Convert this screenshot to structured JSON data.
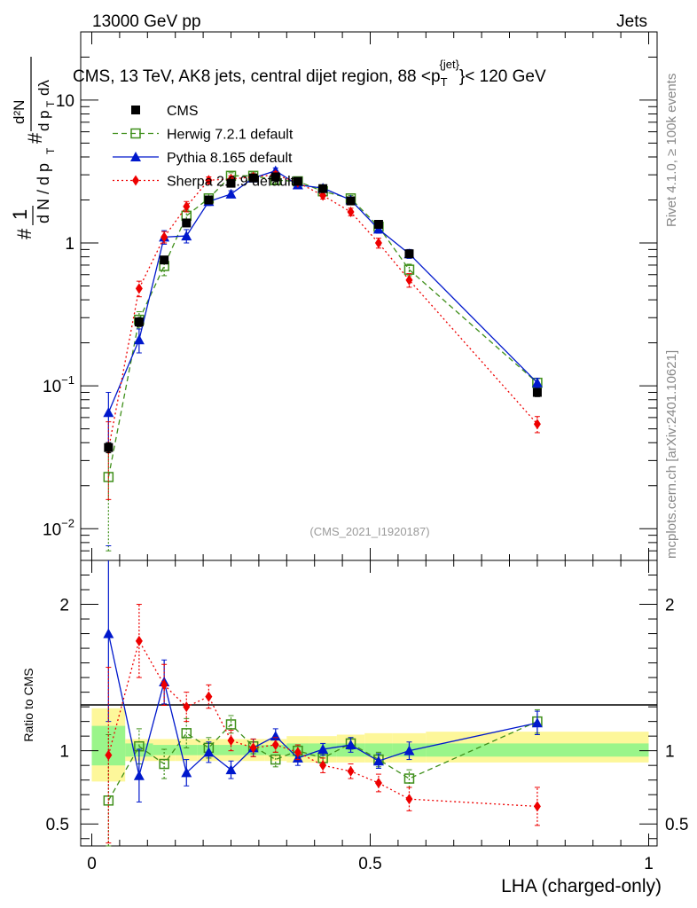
{
  "header": {
    "top_left": "13000 GeV pp",
    "top_right": "Jets",
    "plot_title": "CMS, 13 TeV, AK8 jets, central dijet region, 88 <p",
    "plot_title_sub": "T",
    "plot_title_sup": "{jet}",
    "plot_title_end": "}< 120 GeV",
    "watermark": "(CMS_2021_I1920187)",
    "side_right_top": "Rivet 4.1.0, ≥ 100k events",
    "side_right_bottom": "mcplots.cern.ch [arXiv:2401.10621]"
  },
  "chart_data": [
    {
      "type": "scatter",
      "title": "CMS, 13 TeV, AK8 jets, central dijet region, 88 < pT^{jet} < 120 GeV",
      "xlabel": "LHA (charged-only)",
      "ylabel": "1/(dN/dpT) d²N/(dpT dλ)",
      "yscale": "log",
      "xlim": [
        0,
        1
      ],
      "ylim": [
        0.006,
        30
      ],
      "yticks": [
        {
          "value": 0.01,
          "label": "10",
          "exp": "−2"
        },
        {
          "value": 0.1,
          "label": "10",
          "exp": "−1"
        },
        {
          "value": 1,
          "label": "1",
          "exp": ""
        },
        {
          "value": 10,
          "label": "10",
          "exp": ""
        }
      ],
      "x": [
        0.03,
        0.085,
        0.13,
        0.17,
        0.21,
        0.25,
        0.29,
        0.33,
        0.37,
        0.415,
        0.465,
        0.515,
        0.57,
        0.8
      ],
      "series": [
        {
          "name": "CMS",
          "color": "#000000",
          "style": "data",
          "values": [
            0.037,
            0.28,
            0.76,
            1.38,
            2.0,
            2.62,
            2.85,
            2.9,
            2.7,
            2.4,
            1.97,
            1.35,
            0.84,
            0.09
          ],
          "errors": [
            0.003,
            0.02,
            0.04,
            0.07,
            0.08,
            0.1,
            0.1,
            0.1,
            0.1,
            0.09,
            0.08,
            0.06,
            0.04,
            0.006
          ]
        },
        {
          "name": "Herwig 7.2.1 default",
          "color": "#3f8f1a",
          "style": "open-square",
          "dash": "6,4",
          "values": [
            0.023,
            0.29,
            0.69,
            1.55,
            2.05,
            2.95,
            2.95,
            2.75,
            2.7,
            2.3,
            2.05,
            1.3,
            0.65,
            0.105
          ],
          "errors": [
            0.016,
            0.04,
            0.1,
            0.15,
            0.15,
            0.15,
            0.15,
            0.15,
            0.12,
            0.1,
            0.1,
            0.08,
            0.06,
            0.008
          ]
        },
        {
          "name": "Pythia 8.165 default",
          "color": "#0018cc",
          "style": "triangle",
          "dash": "",
          "values": [
            0.065,
            0.21,
            1.1,
            1.12,
            1.95,
            2.2,
            2.85,
            3.2,
            2.55,
            2.42,
            2.0,
            1.25,
            0.84,
            0.105
          ],
          "errors": [
            0.025,
            0.04,
            0.12,
            0.12,
            0.12,
            0.12,
            0.15,
            0.15,
            0.12,
            0.1,
            0.1,
            0.08,
            0.06,
            0.008
          ]
        },
        {
          "name": "Sherpa 2.2.9 default",
          "color": "#ee0000",
          "style": "diamond",
          "dash": "2,3",
          "values": [
            0.036,
            0.48,
            1.1,
            1.8,
            2.75,
            2.8,
            2.9,
            3.0,
            2.65,
            2.15,
            1.65,
            1.0,
            0.55,
            0.054
          ],
          "errors": [
            0.02,
            0.06,
            0.1,
            0.15,
            0.15,
            0.15,
            0.15,
            0.15,
            0.12,
            0.12,
            0.1,
            0.08,
            0.06,
            0.007
          ]
        }
      ]
    },
    {
      "type": "scatter",
      "title": "",
      "xlabel": "LHA (charged-only)",
      "ylabel": "Ratio to CMS",
      "xlim": [
        0,
        1
      ],
      "ylim": [
        0.35,
        2.3
      ],
      "xticks": [
        {
          "value": 0,
          "label": "0"
        },
        {
          "value": 0.5,
          "label": "0.5"
        },
        {
          "value": 1,
          "label": "1"
        }
      ],
      "yticks": [
        {
          "value": 0.5,
          "label": "0.5"
        },
        {
          "value": 1,
          "label": "1"
        },
        {
          "value": 2,
          "label": "2"
        }
      ],
      "bin_edges": [
        0,
        0.06,
        0.11,
        0.15,
        0.19,
        0.23,
        0.27,
        0.31,
        0.35,
        0.39,
        0.44,
        0.49,
        0.54,
        0.6,
        1.0
      ],
      "band_inner": [
        [
          0.9,
          1.17
        ],
        [
          0.96,
          1.05
        ],
        [
          0.97,
          1.04
        ],
        [
          0.97,
          1.04
        ],
        [
          0.97,
          1.04
        ],
        [
          0.97,
          1.04
        ],
        [
          0.97,
          1.04
        ],
        [
          0.97,
          1.04
        ],
        [
          0.96,
          1.05
        ],
        [
          0.96,
          1.05
        ],
        [
          0.96,
          1.05
        ],
        [
          0.96,
          1.05
        ],
        [
          0.96,
          1.05
        ],
        [
          0.96,
          1.05
        ]
      ],
      "band_outer": [
        [
          0.79,
          1.29
        ],
        [
          0.93,
          1.08
        ],
        [
          0.93,
          1.08
        ],
        [
          0.93,
          1.08
        ],
        [
          0.93,
          1.08
        ],
        [
          0.93,
          1.08
        ],
        [
          0.93,
          1.08
        ],
        [
          0.93,
          1.08
        ],
        [
          0.92,
          1.1
        ],
        [
          0.92,
          1.1
        ],
        [
          0.92,
          1.11
        ],
        [
          0.92,
          1.12
        ],
        [
          0.92,
          1.12
        ],
        [
          0.92,
          1.13
        ]
      ],
      "x": [
        0.03,
        0.085,
        0.13,
        0.17,
        0.21,
        0.25,
        0.29,
        0.33,
        0.37,
        0.415,
        0.465,
        0.515,
        0.57,
        0.8
      ],
      "series": [
        {
          "name": "Herwig 7.2.1 default",
          "color": "#3f8f1a",
          "style": "open-square",
          "dash": "6,4",
          "values": [
            0.66,
            1.03,
            0.91,
            1.12,
            1.02,
            1.18,
            1.03,
            0.94,
            1.0,
            0.95,
            1.05,
            0.94,
            0.81,
            1.2
          ],
          "errors": [
            0.45,
            0.12,
            0.1,
            0.1,
            0.07,
            0.06,
            0.05,
            0.05,
            0.04,
            0.04,
            0.04,
            0.05,
            0.06,
            0.08
          ]
        },
        {
          "name": "Pythia 8.165 default",
          "color": "#0018cc",
          "style": "triangle",
          "dash": "",
          "values": [
            1.8,
            0.83,
            1.47,
            0.85,
            0.99,
            0.87,
            1.02,
            1.1,
            0.95,
            1.01,
            1.04,
            0.93,
            1.0,
            1.19
          ],
          "errors": [
            0.6,
            0.18,
            0.15,
            0.09,
            0.07,
            0.06,
            0.06,
            0.05,
            0.05,
            0.04,
            0.05,
            0.05,
            0.06,
            0.08
          ]
        },
        {
          "name": "Sherpa 2.2.9 default",
          "color": "#ee0000",
          "style": "diamond",
          "dash": "2,3",
          "values": [
            0.97,
            1.75,
            1.45,
            1.3,
            1.37,
            1.07,
            1.02,
            1.04,
            0.99,
            0.9,
            0.86,
            0.78,
            0.67,
            0.62
          ],
          "errors": [
            0.6,
            0.25,
            0.14,
            0.1,
            0.08,
            0.07,
            0.06,
            0.05,
            0.05,
            0.05,
            0.05,
            0.06,
            0.08,
            0.13
          ]
        }
      ]
    }
  ]
}
